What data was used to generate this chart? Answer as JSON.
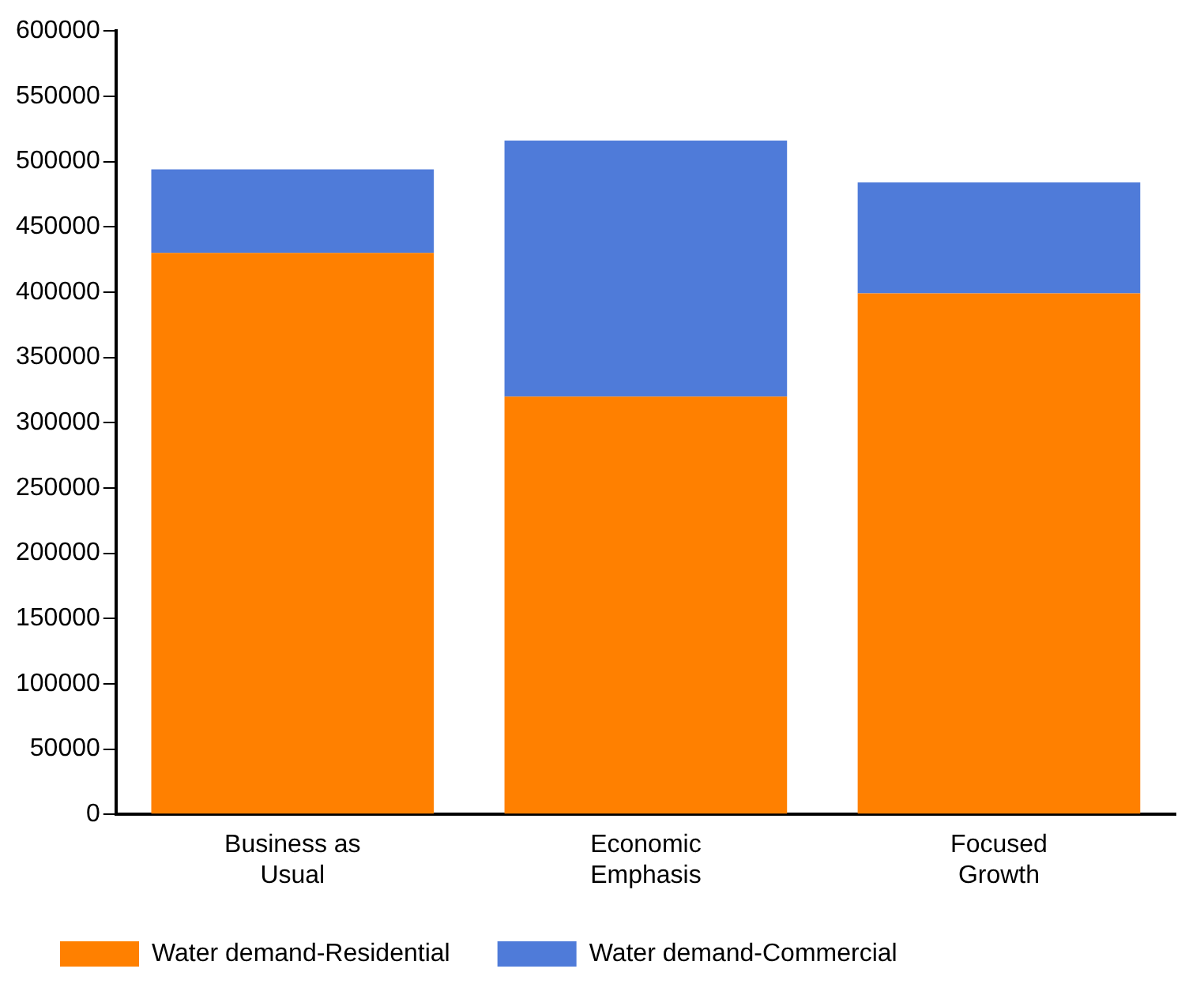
{
  "chart_data": {
    "type": "bar",
    "categories": [
      "Business as Usual",
      "Economic Emphasis",
      "Focused Growth"
    ],
    "stacked": true,
    "series": [
      {
        "name": "Water demand-Residential",
        "color": "#ff8000",
        "values": [
          430000,
          320000,
          399000
        ]
      },
      {
        "name": "Water demand-Commercial",
        "color": "#4f7bd9",
        "values": [
          64000,
          196000,
          85000
        ]
      }
    ],
    "ylim": [
      0,
      600000
    ],
    "yticks": [
      0,
      50000,
      100000,
      150000,
      200000,
      250000,
      300000,
      350000,
      400000,
      450000,
      500000,
      550000,
      600000
    ],
    "grid": false,
    "legend": "bottom"
  }
}
